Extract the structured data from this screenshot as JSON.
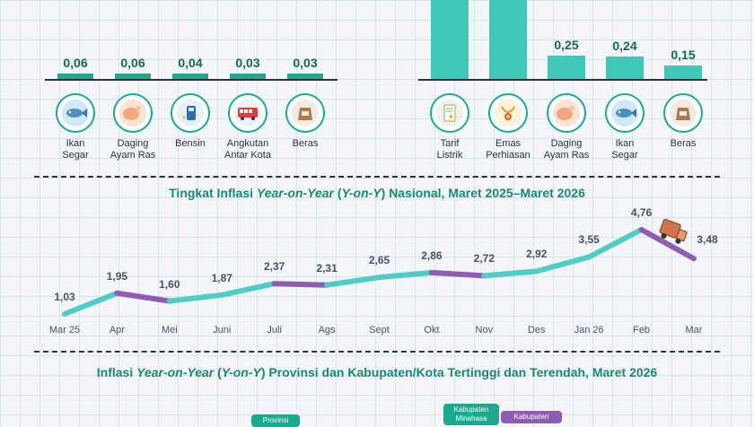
{
  "left_bars": {
    "items": [
      {
        "value": "0,06",
        "label_lines": [
          "Ikan",
          "Segar"
        ],
        "icon": "fish-icon"
      },
      {
        "value": "0,06",
        "label_lines": [
          "Daging",
          "Ayam Ras"
        ],
        "icon": "chicken-icon"
      },
      {
        "value": "0,04",
        "label_lines": [
          "Bensin",
          ""
        ],
        "icon": "fuel-pump-icon"
      },
      {
        "value": "0,03",
        "label_lines": [
          "Angkutan",
          "Antar Kota"
        ],
        "icon": "bus-icon"
      },
      {
        "value": "0,03",
        "label_lines": [
          "Beras",
          ""
        ],
        "icon": "rice-sack-icon"
      }
    ]
  },
  "right_bars": {
    "items": [
      {
        "value": "",
        "label_lines": [
          "Tarif",
          "Listrik"
        ],
        "icon": "electricity-bill-icon"
      },
      {
        "value": "",
        "label_lines": [
          "Emas",
          "Perhiasan"
        ],
        "icon": "gold-jewelry-icon"
      },
      {
        "value": "0,25",
        "label_lines": [
          "Daging",
          "Ayam Ras"
        ],
        "icon": "chicken-icon"
      },
      {
        "value": "0,24",
        "label_lines": [
          "Ikan",
          "Segar"
        ],
        "icon": "fish-icon"
      },
      {
        "value": "0,15",
        "label_lines": [
          "Beras",
          ""
        ],
        "icon": "rice-sack-icon"
      }
    ]
  },
  "yoy_title": {
    "pre": "Tingkat Inflasi ",
    "em1": "Year-on-Year",
    "mid": " (",
    "em2": "Y-on-Y",
    "post": ") Nasional, Maret 2025–Maret 2026"
  },
  "chart_data": {
    "type": "line",
    "categories": [
      "Mar 25",
      "Apr",
      "Mei",
      "Juni",
      "Juli",
      "Ags",
      "Sept",
      "Okt",
      "Nov",
      "Des",
      "Jan 26",
      "Feb",
      "Mar"
    ],
    "values": [
      1.03,
      1.95,
      1.6,
      1.87,
      2.37,
      2.31,
      2.65,
      2.86,
      2.72,
      2.92,
      3.55,
      4.76,
      3.48
    ],
    "value_labels": [
      "1,03",
      "1,95",
      "1,60",
      "1,87",
      "2,37",
      "2,31",
      "2,65",
      "2,86",
      "2,72",
      "2,92",
      "3,55",
      "4,76",
      "3,48"
    ],
    "title": "Tingkat Inflasi Year-on-Year (Y-on-Y) Nasional, Maret 2025–Maret 2026",
    "xlabel": "",
    "ylabel": "",
    "ylim": [
      1.03,
      4.76
    ],
    "grid": false,
    "colors": {
      "rise": "#4ecdc4",
      "fall": "#8e5bb5"
    }
  },
  "bottom_title": {
    "pre": "Inflasi ",
    "em1": "Year-on-Year",
    "mid": " (",
    "em2": "Y-on-Y",
    "post": ") Provinsi dan Kabupaten/Kota Tertinggi dan Terendah, Maret 2026"
  },
  "bottom_badges": {
    "provinsi": "Provinsi",
    "kab_minahasa": "Kabupaten Minahasa",
    "kabupaten": "Kabupaten"
  },
  "colors": {
    "accent": "#1aaa8e",
    "teal_bar": "#3ec9b7",
    "purple": "#8e5bb5",
    "title_green": "#178a73"
  }
}
